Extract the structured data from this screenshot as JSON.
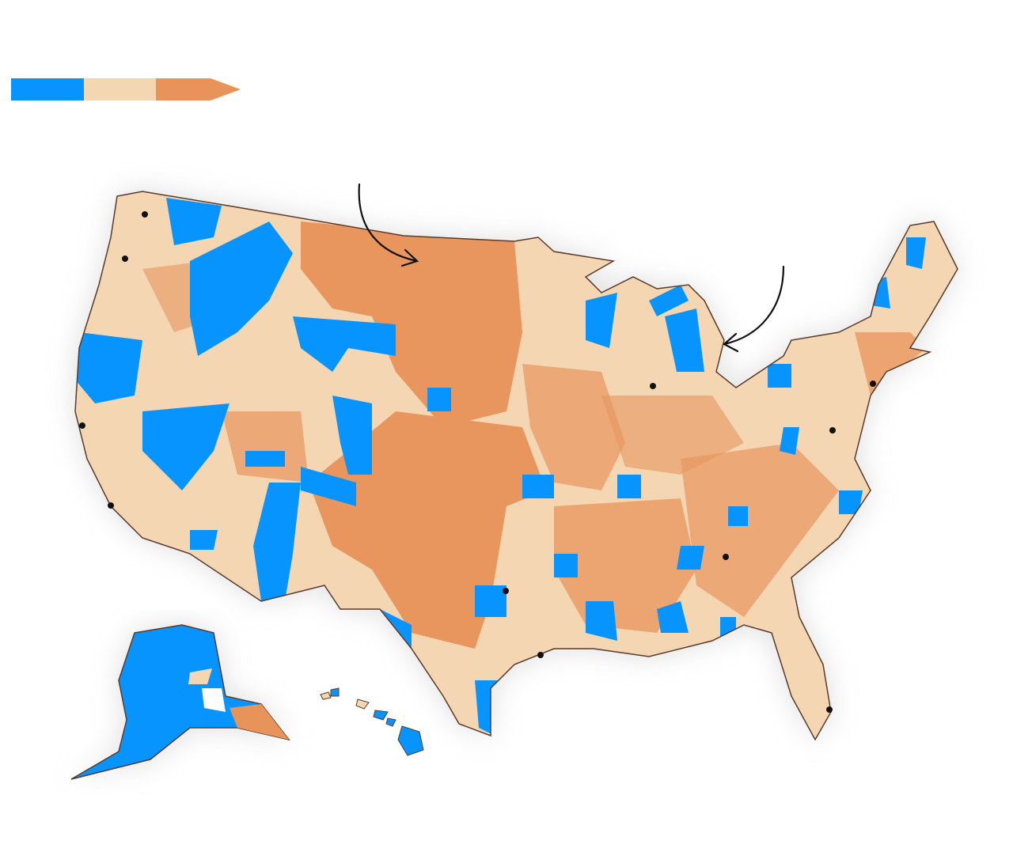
{
  "legend": {
    "colors": {
      "low": "#0794ff",
      "mid": "#f4d6b3",
      "high": "#e8935a"
    },
    "arrow_icon": "arrow-right-icon"
  },
  "map": {
    "base_color": "#f4d6b3",
    "border_color": "#5a3a2a",
    "city_marker_color": "#111111",
    "annotation_arrow_count": 2
  }
}
